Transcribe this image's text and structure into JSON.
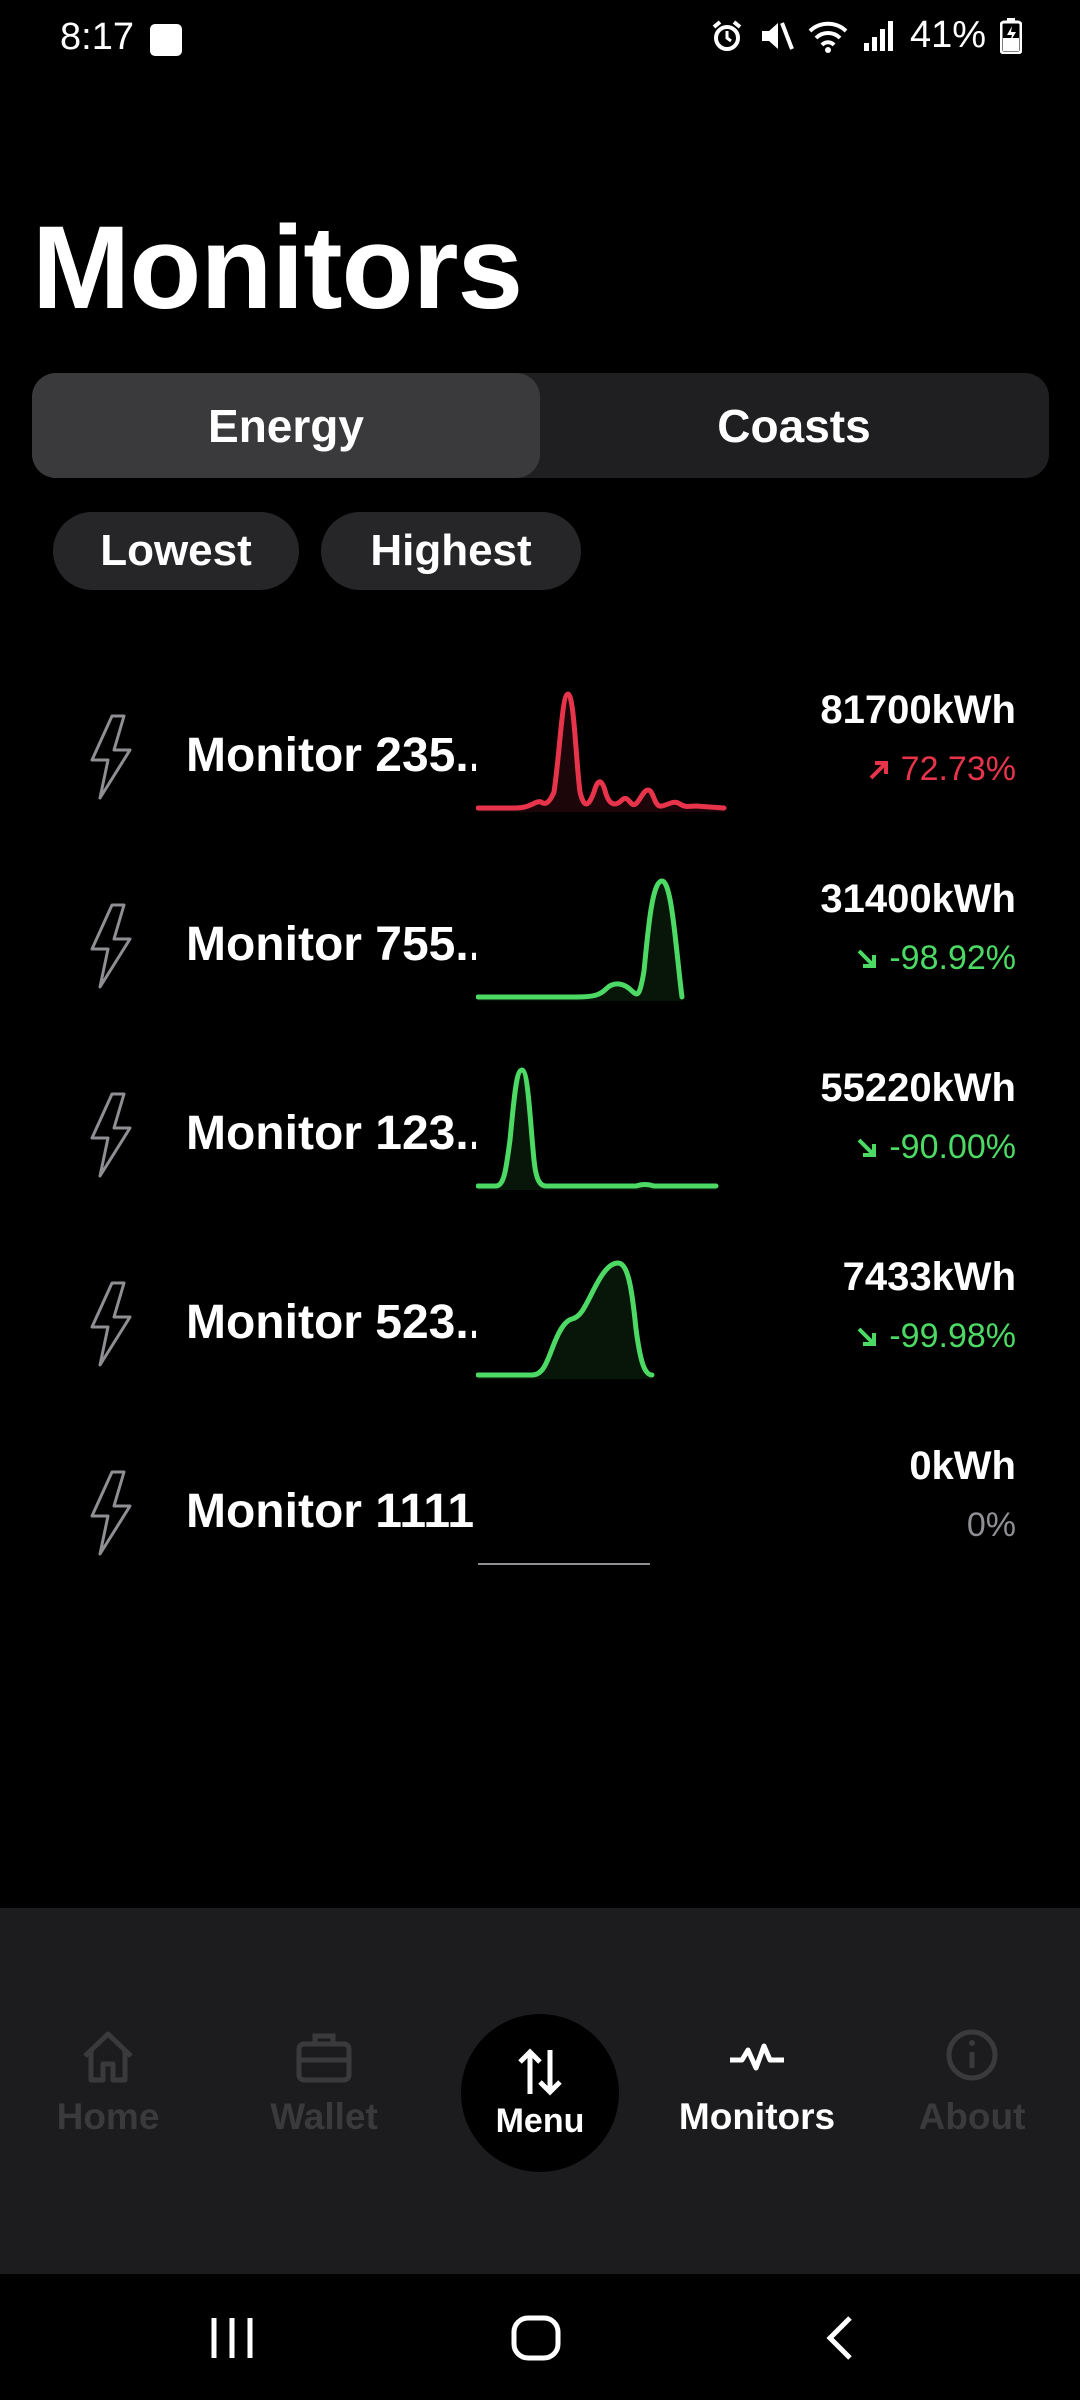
{
  "status_bar": {
    "time": "8:17",
    "battery": "41%",
    "icons": [
      "gallery-icon",
      "alarm-icon",
      "mute-icon",
      "wifi-icon",
      "signal-icon",
      "battery-icon"
    ]
  },
  "title": "Monitors",
  "segments": {
    "left": "Energy",
    "right": "Coasts",
    "selected": "Energy"
  },
  "filters": {
    "lowest": "Lowest",
    "highest": "Highest"
  },
  "monitors": [
    {
      "name": "Monitor 235..",
      "value": "81700kWh",
      "change": "72.73%",
      "trend": "up",
      "color": "#e8344a",
      "icon": "lightning-icon"
    },
    {
      "name": "Monitor 755..",
      "value": "31400kWh",
      "change": "-98.92%",
      "trend": "down",
      "color": "#4cd964",
      "icon": "lightning-icon"
    },
    {
      "name": "Monitor 123..",
      "value": "55220kWh",
      "change": "-90.00%",
      "trend": "down",
      "color": "#4cd964",
      "icon": "lightning-icon"
    },
    {
      "name": "Monitor 523..",
      "value": "7433kWh",
      "change": "-99.98%",
      "trend": "down",
      "color": "#4cd964",
      "icon": "lightning-icon"
    },
    {
      "name": "Monitor 1111.",
      "value": "0kWh",
      "change": "0%",
      "trend": "flat",
      "color": "#8e8e93",
      "icon": "lightning-icon"
    }
  ],
  "bottom_nav": {
    "home": "Home",
    "wallet": "Wallet",
    "menu": "Menu",
    "monitors": "Monitors",
    "about": "About",
    "active": "Monitors"
  },
  "colors": {
    "background": "#000000",
    "up": "#e8344a",
    "down": "#4cd964",
    "nav_bg": "#1c1c1e"
  }
}
